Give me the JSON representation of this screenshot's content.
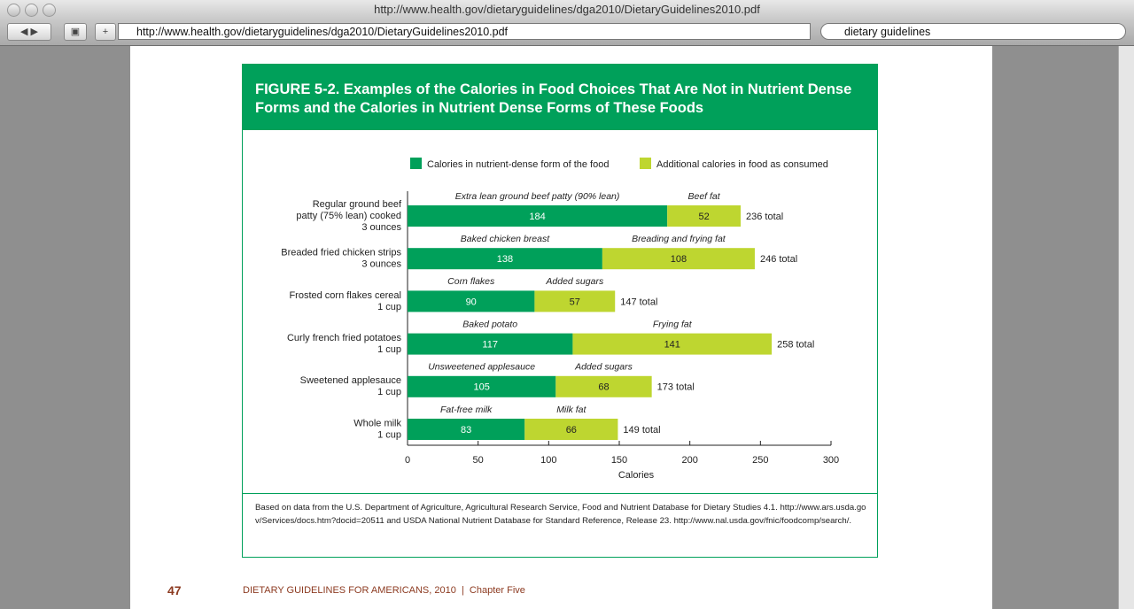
{
  "browser": {
    "window_title": "http://www.health.gov/dietaryguidelines/dga2010/DietaryGuidelines2010.pdf",
    "url": "http://www.health.gov/dietaryguidelines/dga2010/DietaryGuidelines2010.pdf",
    "search": "dietary guidelines"
  },
  "chart_data": {
    "type": "stacked-bar-horizontal",
    "title": "FIGURE 5-2. Examples of the Calories in Food Choices That Are Not in Nutrient Dense Forms and the Calories in Nutrient Dense Forms of These Foods",
    "categories": [
      [
        "Regular ground beef",
        "patty (75% lean) cooked",
        "3 ounces"
      ],
      [
        "Breaded fried chicken strips",
        "3 ounces"
      ],
      [
        "Frosted corn flakes cereal",
        "1 cup"
      ],
      [
        "Curly french fried potatoes",
        "1 cup"
      ],
      [
        "Sweetened applesauce",
        "1 cup"
      ],
      [
        "Whole milk",
        "1 cup"
      ]
    ],
    "series": [
      {
        "name": "Calories in nutrient-dense form of the food",
        "color": "#00a05a",
        "values": [
          184,
          138,
          90,
          117,
          105,
          83
        ],
        "segment_labels": [
          "Extra lean ground beef patty (90% lean)",
          "Baked chicken breast",
          "Corn flakes",
          "Baked potato",
          "Unsweetened applesauce",
          "Fat-free milk"
        ]
      },
      {
        "name": "Additional calories in food as consumed",
        "color": "#bed630",
        "values": [
          52,
          108,
          57,
          141,
          68,
          66
        ],
        "segment_labels": [
          "Beef fat",
          "Breading and frying fat",
          "Added sugars",
          "Frying fat",
          "Added sugars",
          "Milk fat"
        ]
      }
    ],
    "totals": [
      236,
      246,
      147,
      258,
      173,
      149
    ],
    "total_labels": [
      "236 total",
      "246 total",
      "147 total",
      "258 total",
      "173 total",
      "149 total"
    ],
    "xlim": [
      0,
      300
    ],
    "xticks": [
      0,
      50,
      100,
      150,
      200,
      250,
      300
    ],
    "xlabel": "Calories",
    "source": "Based on data from the U.S. Department of Agriculture, Agricultural Research Service, Food and Nutrient Database for Dietary Studies 4.1. http://www.ars.usda.gov/Services/docs.htm?docid=20511 and USDA National Nutrient Database for Standard Reference, Release 23. http://www.nal.usda.gov/fnic/foodcomp/search/."
  },
  "footer": {
    "page_number": "47",
    "text": "DIETARY GUIDELINES FOR AMERICANS, 2010  |  Chapter Five"
  }
}
